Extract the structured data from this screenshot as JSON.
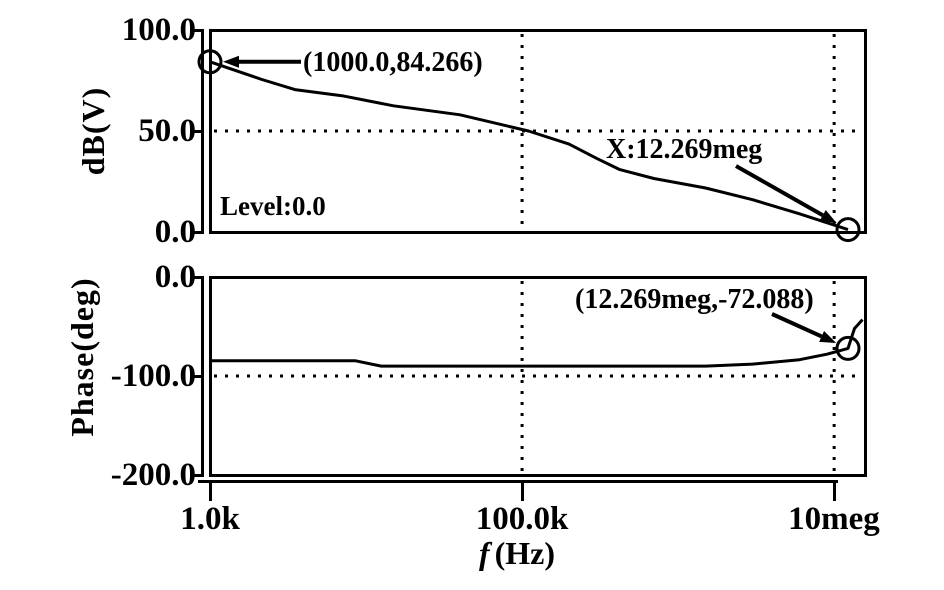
{
  "colors": {
    "foreground": "#000000",
    "background": "#ffffff"
  },
  "chart_data": [
    {
      "type": "line",
      "id": "magnitude",
      "ylabel": "dB(V)",
      "ylim": [
        0,
        100
      ],
      "yticks": [
        {
          "label": "100.0",
          "value": 100
        },
        {
          "label": "50.0",
          "value": 50
        },
        {
          "label": "0.0",
          "value": 0
        }
      ],
      "ygrid": [
        50
      ],
      "grid_style": "dotted",
      "series": [
        {
          "name": "dB(V)",
          "points": [
            [
              1000,
              84.266
            ],
            [
              2150,
              75.5
            ],
            [
              3500,
              70.5
            ],
            [
              7000,
              67.5
            ],
            [
              15000,
              62.5
            ],
            [
              40000,
              58
            ],
            [
              110000,
              50
            ],
            [
              200000,
              43.5
            ],
            [
              300000,
              36.5
            ],
            [
              420000,
              31
            ],
            [
              700000,
              26.5
            ],
            [
              1500000,
              21.8
            ],
            [
              3000000,
              16
            ],
            [
              6000000,
              9
            ],
            [
              12269000,
              1.2
            ]
          ]
        }
      ],
      "markers": [
        {
          "x": 1000,
          "y": 84.266
        },
        {
          "x": 12269000,
          "y": 1.2
        }
      ],
      "annotations": {
        "cursor_left": "(1000.0,84.266)",
        "cursor_x": "X:12.269meg",
        "level": "Level:0.0"
      }
    },
    {
      "type": "line",
      "id": "phase",
      "ylabel": "Phase(deg)",
      "ylim": [
        -200,
        0
      ],
      "yticks": [
        {
          "label": "0.0",
          "value": 0
        },
        {
          "label": "-100.0",
          "value": -100
        },
        {
          "label": "-200.0",
          "value": -200
        }
      ],
      "ygrid": [
        -100
      ],
      "grid_style": "dotted",
      "series": [
        {
          "name": "Phase(deg)",
          "points": [
            [
              1000,
              -84.5
            ],
            [
              8500,
              -84.5
            ],
            [
              12500,
              -90
            ],
            [
              1500000,
              -90
            ],
            [
              3000000,
              -88
            ],
            [
              6000000,
              -83.5
            ],
            [
              9000000,
              -78
            ],
            [
              12269000,
              -72.088
            ],
            [
              13500000,
              -52
            ],
            [
              15200000,
              -43
            ]
          ]
        }
      ],
      "markers": [
        {
          "x": 12269000,
          "y": -72.088
        }
      ],
      "annotations": {
        "cursor": "(12.269meg,-72.088)"
      }
    }
  ],
  "xaxis": {
    "scale": "log",
    "xlim": [
      1000,
      16000000
    ],
    "xgrid": [
      100000,
      10000000
    ],
    "ticks": [
      {
        "label": "1.0k",
        "value": 1000
      },
      {
        "label": "100.0k",
        "value": 100000
      },
      {
        "label": "10meg",
        "value": 10000000
      }
    ],
    "title_variable": "f",
    "title_unit": "(Hz)"
  }
}
